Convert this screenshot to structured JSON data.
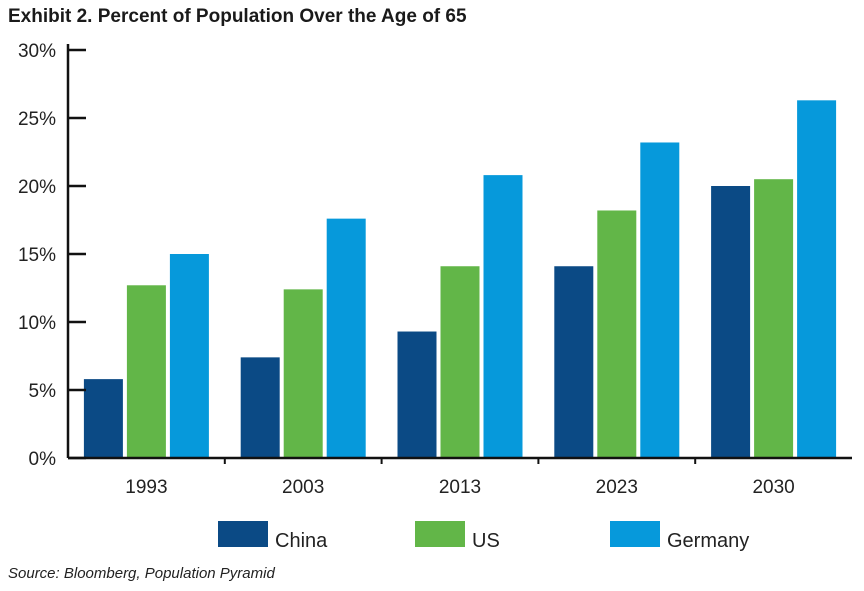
{
  "title": "Exhibit 2. Percent of Population Over the Age of 65",
  "source": "Source: Bloomberg, Population Pyramid",
  "chart_data": {
    "type": "bar",
    "title": "Exhibit 2. Percent of Population Over the Age of 65",
    "xlabel": "",
    "ylabel": "",
    "ylim": [
      0,
      30
    ],
    "yticks": [
      0,
      5,
      10,
      15,
      20,
      25,
      30
    ],
    "ytick_labels": [
      "0%",
      "5%",
      "10%",
      "15%",
      "20%",
      "25%",
      "30%"
    ],
    "categories": [
      "1993",
      "2003",
      "2013",
      "2023",
      "2030"
    ],
    "series": [
      {
        "name": "China",
        "color": "#0b4a85",
        "values": [
          5.8,
          7.4,
          9.3,
          14.1,
          20.0
        ]
      },
      {
        "name": "US",
        "color": "#62b648",
        "values": [
          12.7,
          12.4,
          14.1,
          18.2,
          20.5
        ]
      },
      {
        "name": "Germany",
        "color": "#0699db",
        "values": [
          15.0,
          17.6,
          20.8,
          23.2,
          26.3
        ]
      }
    ],
    "legend_position": "bottom",
    "grid": false
  }
}
